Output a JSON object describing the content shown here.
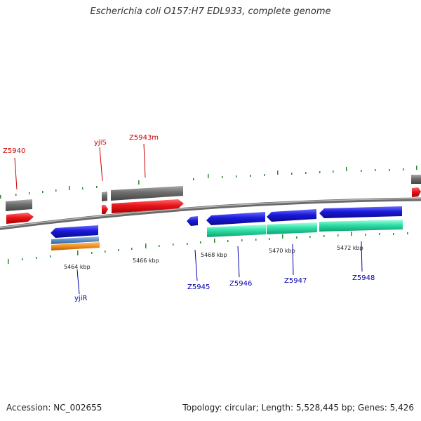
{
  "header": {
    "title": "Escherichia coli O157:H7 EDL933, complete genome"
  },
  "footer": {
    "accession": "Accession: NC_002655",
    "summary": "Topology: circular; Length: 5,528,445 bp; Genes: 5,426"
  },
  "colors": {
    "forward_label": "#cc0000",
    "reverse_label": "#0000aa",
    "tick": "#2a8a2a",
    "gene_red": "#e8141a",
    "gene_grey": "#6d6d6d",
    "gene_blue": "#1a1adc",
    "gene_teal": "#2fe0a8",
    "gene_steel": "#5b8ec6",
    "gene_orange": "#f0901a",
    "backbone": "#8a8a8a"
  },
  "ticks": [
    {
      "label": "5464 kbp"
    },
    {
      "label": "5466 kbp"
    },
    {
      "label": "5468 kbp"
    },
    {
      "label": "5470 kbp"
    },
    {
      "label": "5472 kbp"
    }
  ],
  "forward_genes": [
    {
      "label": "Z5940"
    },
    {
      "label": "yjiS"
    },
    {
      "label": "Z5943m"
    }
  ],
  "reverse_genes": [
    {
      "label": "yjiR"
    },
    {
      "label": "Z5945"
    },
    {
      "label": "Z5946"
    },
    {
      "label": "Z5947"
    },
    {
      "label": "Z5948"
    }
  ]
}
